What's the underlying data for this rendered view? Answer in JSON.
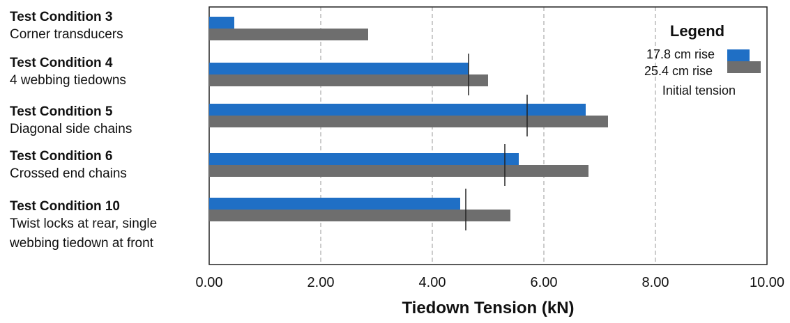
{
  "chart_data": {
    "type": "bar",
    "orientation": "horizontal",
    "categories": [
      {
        "title": "Test Condition 3",
        "subtitle": [
          "Corner transducers"
        ]
      },
      {
        "title": "Test Condition 4",
        "subtitle": [
          "4 webbing tiedowns"
        ]
      },
      {
        "title": "Test Condition 5",
        "subtitle": [
          "Diagonal side chains"
        ]
      },
      {
        "title": "Test Condition 6",
        "subtitle": [
          "Crossed end chains"
        ]
      },
      {
        "title": "Test Condition 10",
        "subtitle": [
          "Twist locks at rear, single",
          "webbing tiedown at front"
        ]
      }
    ],
    "series": [
      {
        "name": "17.8 cm rise",
        "color": "#1f6fc5",
        "values": [
          0.45,
          4.65,
          6.75,
          5.55,
          4.5
        ]
      },
      {
        "name": "25.4 cm rise",
        "color": "#6e6e6e",
        "values": [
          2.85,
          5.0,
          7.15,
          6.8,
          5.4
        ]
      }
    ],
    "markers": {
      "name": "Initial tension",
      "values": [
        null,
        4.65,
        5.7,
        5.3,
        4.6
      ]
    },
    "xlabel": "Tiedown Tension (kN)",
    "xlim": [
      0,
      10
    ],
    "xticks": [
      "0.00",
      "2.00",
      "4.00",
      "6.00",
      "8.00",
      "10.00"
    ],
    "grid": true,
    "legend": {
      "title": "Legend",
      "placement": "top-right"
    }
  }
}
